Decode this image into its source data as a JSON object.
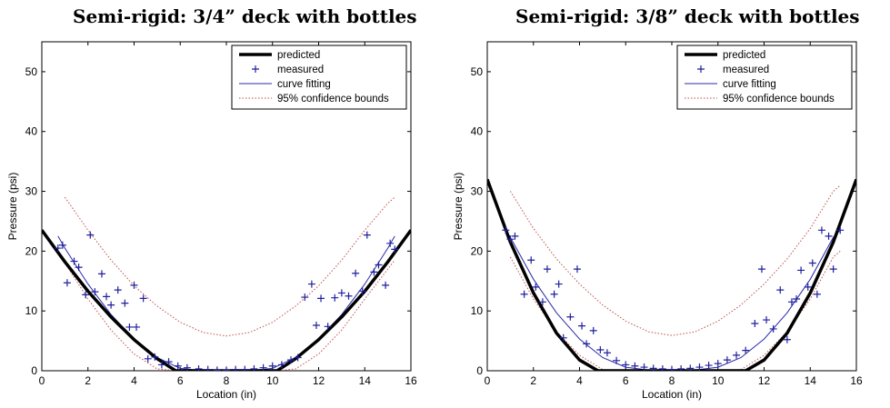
{
  "chart_data": [
    {
      "type": "line",
      "title": "Semi-rigid: 3/4” deck with bottles",
      "xlabel": "Location (in)",
      "ylabel": "Pressure (psi)",
      "xlim": [
        0,
        16
      ],
      "ylim": [
        0,
        55
      ],
      "xticks": [
        0,
        2,
        4,
        6,
        8,
        10,
        12,
        14,
        16
      ],
      "yticks": [
        0,
        10,
        20,
        30,
        40,
        50
      ],
      "grid": false,
      "legend_position": "top-right",
      "legend": [
        "predicted",
        "measured",
        "curve fitting",
        "95% confidence bounds"
      ],
      "colors": {
        "predicted": "#000000",
        "measured": "#1f1f9e",
        "curve_fitting": "#2a2aa8",
        "bounds": "#c0504d"
      },
      "series": [
        {
          "name": "predicted",
          "style": "thick-line",
          "x": [
            0,
            1,
            2,
            3,
            4,
            5,
            5.8,
            10.2,
            11,
            12,
            13,
            14,
            15,
            16
          ],
          "y": [
            23.5,
            18.2,
            13.3,
            9.0,
            5.2,
            2.0,
            0,
            0,
            2.0,
            5.2,
            9.0,
            13.3,
            18.2,
            23.5
          ]
        },
        {
          "name": "measured",
          "style": "markers",
          "x": [
            0.7,
            0.9,
            1.1,
            1.4,
            1.6,
            1.9,
            2.1,
            2.3,
            2.6,
            2.8,
            3.0,
            3.3,
            3.6,
            3.8,
            4.0,
            4.1,
            4.4,
            4.6,
            4.9,
            5.2,
            5.5,
            5.9,
            6.3,
            6.8,
            7.2,
            7.6,
            8.0,
            8.4,
            8.8,
            9.2,
            9.6,
            10.0,
            10.4,
            10.8,
            11.1,
            11.4,
            11.7,
            11.9,
            12.1,
            12.4,
            12.7,
            13.0,
            13.3,
            13.6,
            13.9,
            14.1,
            14.4,
            14.6,
            14.9,
            15.1,
            15.3
          ],
          "y": [
            20.5,
            21.0,
            14.7,
            18.3,
            17.3,
            12.7,
            22.7,
            13.2,
            16.2,
            12.4,
            11.0,
            13.5,
            11.3,
            7.3,
            14.3,
            7.3,
            12.1,
            2.0,
            2.3,
            1.0,
            1.5,
            0.8,
            0.5,
            0.3,
            0.2,
            0.1,
            0.1,
            0.2,
            0.2,
            0.3,
            0.5,
            0.8,
            1.0,
            1.8,
            2.2,
            12.3,
            14.5,
            7.6,
            12.1,
            7.4,
            12.2,
            13.0,
            12.5,
            16.3,
            13.3,
            22.7,
            16.5,
            17.7,
            14.3,
            21.3,
            20.3
          ]
        },
        {
          "name": "curve fitting",
          "style": "thin-line",
          "x": [
            0.7,
            1,
            2,
            3,
            4,
            5,
            6,
            7,
            8,
            9,
            10,
            11,
            12,
            13,
            14,
            15,
            15.3
          ],
          "y": [
            22.5,
            20.5,
            14.5,
            9.4,
            5.3,
            2.2,
            0.4,
            0,
            0,
            0,
            0.4,
            2.2,
            5.3,
            9.4,
            14.5,
            20.5,
            22.5
          ]
        },
        {
          "name": "95% confidence bounds",
          "style": "dotted-upper",
          "x": [
            1,
            2,
            3,
            4,
            5,
            6,
            7,
            8,
            9,
            10,
            11,
            12,
            13,
            14,
            15,
            15.3
          ],
          "y": [
            29.0,
            23.5,
            18.5,
            14.2,
            10.8,
            8.1,
            6.4,
            5.8,
            6.4,
            8.1,
            10.8,
            14.2,
            18.5,
            23.5,
            28.0,
            29.0
          ]
        },
        {
          "name": "95% confidence bounds",
          "style": "dotted-lower",
          "x": [
            1,
            2,
            3,
            4,
            5,
            5.8,
            10.2,
            11,
            12,
            13,
            14,
            15,
            15.3
          ],
          "y": [
            18.0,
            12.0,
            6.8,
            2.8,
            0.3,
            0,
            0,
            0.3,
            2.8,
            6.8,
            12.0,
            17.0,
            18.5
          ]
        }
      ]
    },
    {
      "type": "line",
      "title": "Semi-rigid: 3/8” deck with bottles",
      "xlabel": "Location (in)",
      "ylabel": "Pressure (psi)",
      "xlim": [
        0,
        16
      ],
      "ylim": [
        0,
        55
      ],
      "xticks": [
        0,
        2,
        4,
        6,
        8,
        10,
        12,
        14,
        16
      ],
      "yticks": [
        0,
        10,
        20,
        30,
        40,
        50
      ],
      "grid": false,
      "legend_position": "top-right",
      "legend": [
        "predicted",
        "measured",
        "curve fitting",
        "95% confidence bounds"
      ],
      "colors": {
        "predicted": "#000000",
        "measured": "#1f1f9e",
        "curve_fitting": "#2a2aa8",
        "bounds": "#c0504d"
      },
      "series": [
        {
          "name": "predicted",
          "style": "thick-line",
          "x": [
            0,
            1,
            2,
            3,
            4,
            4.8,
            11.2,
            12,
            13,
            14,
            15,
            16
          ],
          "y": [
            32.0,
            21.5,
            13.0,
            6.3,
            1.8,
            0,
            0,
            1.8,
            6.3,
            13.0,
            21.5,
            32.0
          ]
        },
        {
          "name": "measured",
          "style": "markers",
          "x": [
            0.8,
            1.0,
            1.2,
            1.6,
            1.9,
            2.1,
            2.4,
            2.6,
            2.9,
            3.1,
            3.3,
            3.6,
            3.9,
            4.1,
            4.3,
            4.6,
            4.9,
            5.2,
            5.6,
            6.0,
            6.4,
            6.8,
            7.2,
            7.6,
            8.0,
            8.4,
            8.8,
            9.2,
            9.6,
            10.0,
            10.4,
            10.8,
            11.2,
            11.6,
            11.9,
            12.1,
            12.4,
            12.7,
            13.0,
            13.2,
            13.4,
            13.6,
            13.9,
            14.1,
            14.3,
            14.5,
            14.8,
            15.0,
            15.3
          ],
          "y": [
            23.5,
            22.0,
            22.5,
            12.8,
            18.5,
            14.0,
            11.5,
            17.0,
            12.8,
            14.5,
            5.5,
            9.0,
            17.0,
            7.5,
            4.5,
            6.7,
            3.5,
            3.0,
            1.7,
            1.0,
            0.8,
            0.6,
            0.4,
            0.3,
            0.2,
            0.3,
            0.4,
            0.6,
            0.9,
            1.2,
            1.8,
            2.6,
            3.4,
            7.9,
            17.0,
            8.5,
            7.0,
            13.5,
            5.2,
            11.5,
            12.0,
            16.8,
            14.0,
            18.0,
            12.8,
            23.5,
            22.5,
            17.0,
            23.5
          ]
        },
        {
          "name": "curve fitting",
          "style": "thin-line",
          "x": [
            0.8,
            1,
            2,
            3,
            4,
            5,
            6,
            7,
            8,
            9,
            10,
            11,
            12,
            13,
            14,
            15,
            15.3
          ],
          "y": [
            23.5,
            22.3,
            15.3,
            9.7,
            5.3,
            2.2,
            0.6,
            0.1,
            0,
            0.1,
            0.6,
            2.2,
            5.3,
            9.7,
            15.3,
            22.3,
            23.5
          ]
        },
        {
          "name": "95% confidence bounds",
          "style": "dotted-upper",
          "x": [
            1,
            2,
            3,
            4,
            5,
            6,
            7,
            8,
            9,
            10,
            11,
            12,
            13,
            14,
            15,
            15.3
          ],
          "y": [
            30.0,
            23.8,
            18.7,
            14.5,
            11.0,
            8.3,
            6.5,
            5.9,
            6.5,
            8.3,
            11.0,
            14.5,
            18.7,
            23.8,
            30.0,
            31.0
          ]
        },
        {
          "name": "95% confidence bounds",
          "style": "dotted-lower",
          "x": [
            1,
            2,
            3,
            4,
            5,
            5.8,
            10.2,
            11,
            12,
            13,
            14,
            15,
            15.3
          ],
          "y": [
            19.0,
            12.0,
            6.5,
            2.6,
            0.2,
            0,
            0,
            0.2,
            2.6,
            6.5,
            12.0,
            19.0,
            20.0
          ]
        }
      ]
    }
  ]
}
